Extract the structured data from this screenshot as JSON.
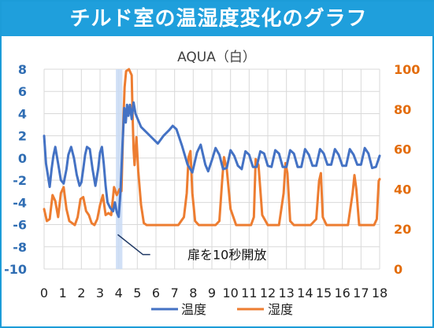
{
  "banner": {
    "title": "チルド室の温湿度変化のグラフ"
  },
  "chart_data": {
    "type": "line",
    "title": "AQUA（白）",
    "xlabel": "",
    "ylabel_left": "",
    "ylabel_right": "",
    "x_ticks": [
      "0",
      "1",
      "2",
      "3",
      "4",
      "5",
      "6",
      "7",
      "8",
      "9",
      "10",
      "11",
      "12",
      "13",
      "14",
      "15",
      "16",
      "17",
      "18"
    ],
    "xlim": [
      0,
      18
    ],
    "ylim_left": [
      -10,
      8
    ],
    "ylim_right": [
      0,
      100
    ],
    "y_ticks_left": [
      "8",
      "6",
      "4",
      "2",
      "0",
      "-2",
      "-4",
      "-6",
      "-8",
      "-10"
    ],
    "y_ticks_right": [
      "100",
      "80",
      "60",
      "40",
      "20",
      "0"
    ],
    "grid": true,
    "legend_position": "bottom",
    "annotation": {
      "text": "扉を10秒開放",
      "x": 4.0,
      "y": -8.6
    },
    "highlight_band": [
      3.85,
      4.2
    ],
    "colors": {
      "temperature": "#4472c4",
      "humidity": "#ed7d31",
      "left_axis": "#2f6db3",
      "right_axis": "#e36c0a",
      "grid": "#d9d9d9",
      "band": "#c9daf5",
      "banner": "#1f9fdc"
    },
    "series": [
      {
        "name": "温度",
        "axis": "left",
        "x": [
          0,
          0.1,
          0.2,
          0.3,
          0.4,
          0.5,
          0.6,
          0.75,
          0.9,
          1.05,
          1.2,
          1.3,
          1.45,
          1.6,
          1.75,
          1.9,
          2.0,
          2.1,
          2.2,
          2.3,
          2.45,
          2.6,
          2.75,
          2.9,
          3.0,
          3.1,
          3.2,
          3.3,
          3.4,
          3.55,
          3.7,
          3.8,
          3.9,
          4.0,
          4.1,
          4.2,
          4.3,
          4.38,
          4.45,
          4.52,
          4.6,
          4.7,
          4.8,
          4.9,
          5.0,
          5.2,
          5.5,
          5.8,
          6.1,
          6.4,
          6.7,
          6.9,
          7.1,
          7.4,
          7.7,
          7.95,
          8.2,
          8.4,
          8.65,
          8.8,
          9.0,
          9.2,
          9.4,
          9.6,
          9.8,
          10.0,
          10.2,
          10.4,
          10.6,
          10.8,
          11.0,
          11.2,
          11.4,
          11.6,
          11.8,
          12.0,
          12.2,
          12.4,
          12.6,
          12.8,
          13.0,
          13.2,
          13.4,
          13.6,
          13.8,
          14.0,
          14.2,
          14.4,
          14.6,
          14.8,
          15.0,
          15.2,
          15.4,
          15.6,
          15.8,
          16.0,
          16.2,
          16.4,
          16.6,
          16.8,
          17.0,
          17.2,
          17.4,
          17.6,
          17.8,
          18.0
        ],
        "values": [
          2.0,
          -0.5,
          -1.5,
          -2.6,
          -1.0,
          0.2,
          1.0,
          -0.5,
          -2.0,
          -2.3,
          -1.0,
          0.3,
          1.0,
          0.0,
          -1.5,
          -2.5,
          -2.2,
          -1.0,
          0.3,
          1.0,
          0.8,
          -1.0,
          -2.5,
          -1.0,
          0.5,
          1.0,
          -0.5,
          -2.5,
          -4.0,
          -4.5,
          -4.8,
          -4.0,
          -4.9,
          -5.3,
          -3.0,
          1.0,
          4.5,
          3.2,
          4.8,
          3.8,
          4.8,
          3.5,
          5.0,
          4.0,
          3.6,
          2.8,
          2.3,
          1.8,
          1.3,
          2.0,
          2.5,
          2.9,
          2.6,
          1.1,
          -0.6,
          -1.3,
          0.5,
          1.2,
          -0.6,
          -1.2,
          -0.2,
          0.9,
          0.3,
          -1.0,
          -0.9,
          0.7,
          0.2,
          -0.7,
          -1.0,
          0.6,
          0.3,
          -0.8,
          -0.8,
          0.6,
          0.4,
          -0.7,
          -0.8,
          0.7,
          0.4,
          -0.8,
          -0.8,
          0.7,
          0.4,
          -0.8,
          -0.8,
          0.8,
          0.3,
          -0.7,
          -0.7,
          0.8,
          0.4,
          -0.6,
          -0.6,
          0.8,
          0.3,
          -0.7,
          -0.7,
          0.8,
          0.3,
          -0.6,
          -0.6,
          0.9,
          0.4,
          -0.9,
          -0.8,
          0.2
        ]
      },
      {
        "name": "湿度",
        "axis": "right",
        "x": [
          0,
          0.15,
          0.3,
          0.45,
          0.6,
          0.75,
          0.9,
          1.05,
          1.2,
          1.35,
          1.5,
          1.65,
          1.8,
          1.95,
          2.1,
          2.25,
          2.4,
          2.55,
          2.7,
          2.85,
          3.0,
          3.15,
          3.3,
          3.45,
          3.6,
          3.75,
          3.9,
          4.05,
          4.15,
          4.25,
          4.32,
          4.4,
          4.55,
          4.7,
          4.75,
          4.8,
          4.85,
          4.95,
          5.05,
          5.2,
          5.35,
          5.5,
          5.7,
          6.0,
          6.3,
          6.6,
          6.9,
          7.2,
          7.5,
          7.65,
          7.75,
          7.85,
          7.95,
          8.1,
          8.3,
          8.6,
          8.9,
          9.2,
          9.4,
          9.55,
          9.65,
          9.8,
          10.0,
          10.3,
          10.6,
          10.9,
          11.1,
          11.25,
          11.35,
          11.5,
          11.7,
          12.0,
          12.3,
          12.6,
          12.85,
          12.95,
          13.05,
          13.2,
          13.4,
          13.7,
          14.0,
          14.3,
          14.6,
          14.75,
          14.85,
          14.95,
          15.15,
          15.4,
          15.7,
          16.0,
          16.3,
          16.55,
          16.65,
          16.75,
          16.9,
          17.1,
          17.4,
          17.7,
          17.85,
          17.95,
          18.0
        ],
        "values": [
          30,
          24,
          25,
          37,
          34,
          26,
          38,
          41,
          30,
          24,
          23,
          22,
          26,
          35,
          36,
          29,
          27,
          23,
          22,
          25,
          32,
          37,
          27,
          28,
          27,
          41,
          37,
          40,
          39,
          74,
          91,
          99,
          100,
          97,
          76,
          60,
          52,
          66,
          49,
          32,
          23,
          22,
          22,
          22,
          22,
          22,
          22,
          22,
          26,
          38,
          56,
          59,
          38,
          24,
          22,
          22,
          22,
          22,
          24,
          44,
          56,
          50,
          30,
          22,
          22,
          22,
          22,
          26,
          55,
          52,
          27,
          22,
          22,
          22,
          38,
          53,
          48,
          24,
          22,
          22,
          22,
          22,
          25,
          44,
          48,
          26,
          22,
          22,
          22,
          22,
          22,
          38,
          47,
          40,
          22,
          22,
          22,
          22,
          25,
          44,
          45
        ]
      }
    ]
  }
}
